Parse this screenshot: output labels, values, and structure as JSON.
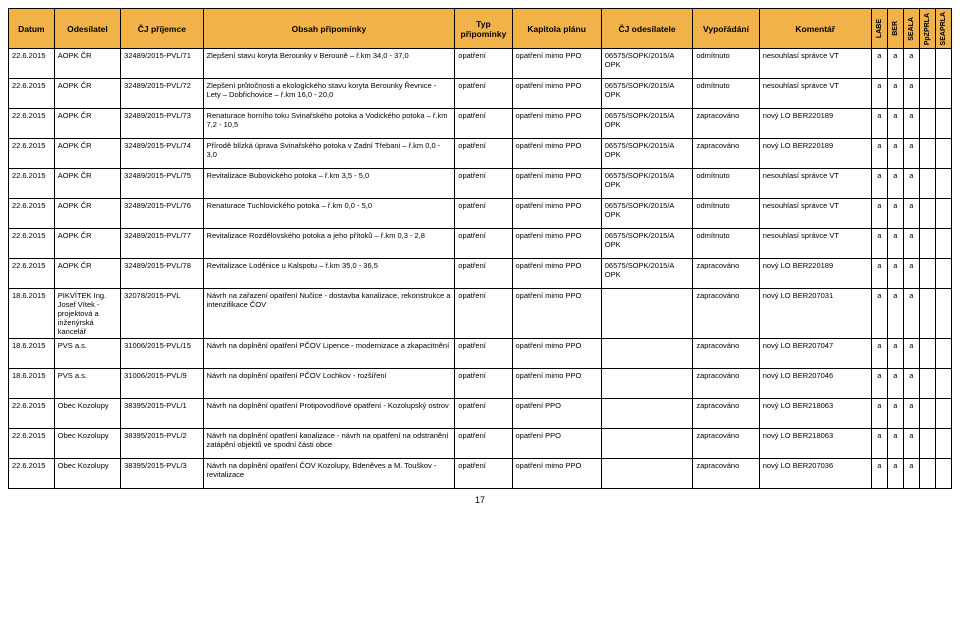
{
  "headers": {
    "datum": "Datum",
    "odesilatel": "Odesílatel",
    "cj_prijemce": "ČJ příjemce",
    "obsah": "Obsah připomínky",
    "typ": "Typ připomínky",
    "kapitola": "Kapitola plánu",
    "cj_odesilatele": "ČJ odesílatele",
    "vyporadani": "Vypořádání",
    "komentar": "Komentář",
    "v1": "LABE",
    "v2": "BER",
    "v3": "SEALA",
    "v4": "PpZPRLA",
    "v5": "SEAPRLA"
  },
  "rows": [
    {
      "datum": "22.6.2015",
      "odes": "AOPK ČR",
      "cjpr": "32489/2015-PVL/71",
      "obsah": "Zlepšení stavu koryta Berounky v Berouně – ř.km 34,0 - 37,0",
      "typ": "opatření",
      "kap": "opatření mimo PPO",
      "cjod": "06575/SOPK/2015/A OPK",
      "vyp": "odmítnuto",
      "kom": "nesouhlasí správce VT",
      "v1": "a",
      "v2": "a",
      "v3": "a",
      "v4": "",
      "v5": ""
    },
    {
      "datum": "22.6.2015",
      "odes": "AOPK ČR",
      "cjpr": "32489/2015-PVL/72",
      "obsah": "Zlepšení průtočnosti a ekologického stavu koryta Berounky Řevnice - Lety – Dobřichovice – ř.km 16,0 - 20,0",
      "typ": "opatření",
      "kap": "opatření mimo PPO",
      "cjod": "06575/SOPK/2015/A OPK",
      "vyp": "odmítnuto",
      "kom": "nesouhlasí správce VT",
      "v1": "a",
      "v2": "a",
      "v3": "a",
      "v4": "",
      "v5": ""
    },
    {
      "datum": "22.6.2015",
      "odes": "AOPK ČR",
      "cjpr": "32489/2015-PVL/73",
      "obsah": "Renaturace horního toku Svinařského potoka a Vodického potoka – ř.km 7,2 - 10,5",
      "typ": "opatření",
      "kap": "opatření mimo PPO",
      "cjod": "06575/SOPK/2015/A OPK",
      "vyp": "zapracováno",
      "kom": "nový LO BER220189",
      "v1": "a",
      "v2": "a",
      "v3": "a",
      "v4": "",
      "v5": ""
    },
    {
      "datum": "22.6.2015",
      "odes": "AOPK ČR",
      "cjpr": "32489/2015-PVL/74",
      "obsah": "Přírodě blízká úprava Svinařského potoka v Zadní Třebani – ř.km 0,0 - 3,0",
      "typ": "opatření",
      "kap": "opatření mimo PPO",
      "cjod": "06575/SOPK/2015/A OPK",
      "vyp": "zapracováno",
      "kom": "nový LO BER220189",
      "v1": "a",
      "v2": "a",
      "v3": "a",
      "v4": "",
      "v5": ""
    },
    {
      "datum": "22.6.2015",
      "odes": "AOPK ČR",
      "cjpr": "32489/2015-PVL/75",
      "obsah": "Revitalizace Bubovického potoka – ř.km 3,5 - 5,0",
      "typ": "opatření",
      "kap": "opatření mimo PPO",
      "cjod": "06575/SOPK/2015/A OPK",
      "vyp": "odmítnuto",
      "kom": "nesouhlasí správce VT",
      "v1": "a",
      "v2": "a",
      "v3": "a",
      "v4": "",
      "v5": ""
    },
    {
      "datum": "22.6.2015",
      "odes": "AOPK ČR",
      "cjpr": "32489/2015-PVL/76",
      "obsah": "Renaturace Tuchlovického potoka – ř.km 0,0 - 5,0",
      "typ": "opatření",
      "kap": "opatření mimo PPO",
      "cjod": "06575/SOPK/2015/A OPK",
      "vyp": "odmítnuto",
      "kom": "nesouhlasí správce VT",
      "v1": "a",
      "v2": "a",
      "v3": "a",
      "v4": "",
      "v5": ""
    },
    {
      "datum": "22.6.2015",
      "odes": "AOPK ČR",
      "cjpr": "32489/2015-PVL/77",
      "obsah": "Revitalizace Rozdělovského potoka a jeho přítoků – ř.km 0,3 - 2,8",
      "typ": "opatření",
      "kap": "opatření mimo PPO",
      "cjod": "06575/SOPK/2015/A OPK",
      "vyp": "odmítnuto",
      "kom": "nesouhlasí správce VT",
      "v1": "a",
      "v2": "a",
      "v3": "a",
      "v4": "",
      "v5": ""
    },
    {
      "datum": "22.6.2015",
      "odes": "AOPK ČR",
      "cjpr": "32489/2015-PVL/78",
      "obsah": "Revitalizace Loděnice u Kalspotu – ř.km 35,0 - 36,5",
      "typ": "opatření",
      "kap": "opatření mimo PPO",
      "cjod": "06575/SOPK/2015/A OPK",
      "vyp": "zapracováno",
      "kom": "nový LO BER220189",
      "v1": "a",
      "v2": "a",
      "v3": "a",
      "v4": "",
      "v5": ""
    },
    {
      "datum": "18.6.2015",
      "odes": "PIKVÍTEK Ing. Josef Vítek - projektová a inženýrská kancelář",
      "cjpr": "32078/2015-PVL",
      "obsah": "Návrh na zařazení opatření Nučice - dostavba kanalizace, rekonstrukce a intenzifikace ČOV",
      "typ": "opatření",
      "kap": "opatření mimo PPO",
      "cjod": "",
      "vyp": "zapracováno",
      "kom": "nový LO BER207031",
      "v1": "a",
      "v2": "a",
      "v3": "a",
      "v4": "",
      "v5": ""
    },
    {
      "datum": "18.6.2015",
      "odes": "PVS a.s.",
      "cjpr": "31006/2015-PVL/15",
      "obsah": "Návrh na doplnění opatření PČOV Lipence - modernizace a zkapacitnění",
      "typ": "opatření",
      "kap": "opatření mimo PPO",
      "cjod": "",
      "vyp": "zapracováno",
      "kom": "nový LO BER207047",
      "v1": "a",
      "v2": "a",
      "v3": "a",
      "v4": "",
      "v5": ""
    },
    {
      "datum": "18.6.2015",
      "odes": "PVS a.s.",
      "cjpr": "31006/2015-PVL/9",
      "obsah": "Návrh na doplnění opatření PČOV Lochkov - rozšíření",
      "typ": "opatření",
      "kap": "opatření mimo PPO",
      "cjod": "",
      "vyp": "zapracováno",
      "kom": "nový LO BER207046",
      "v1": "a",
      "v2": "a",
      "v3": "a",
      "v4": "",
      "v5": ""
    },
    {
      "datum": "22.6.2015",
      "odes": "Obec Kozolupy",
      "cjpr": "38395/2015-PVL/1",
      "obsah": "Návrh na doplnění opatření Protipovodňové opatření - Kozolupský ostrov",
      "typ": "opatření",
      "kap": "opatření PPO",
      "cjod": "",
      "vyp": "zapracováno",
      "kom": "nový LO BER218063",
      "v1": "a",
      "v2": "a",
      "v3": "a",
      "v4": "",
      "v5": ""
    },
    {
      "datum": "22.6.2015",
      "odes": "Obec Kozolupy",
      "cjpr": "38395/2015-PVL/2",
      "obsah": "Návrh na doplnění opatření kanalizace - návrh na opatření na odstranění zatápění objektů ve spodní části obce",
      "typ": "opatření",
      "kap": "opatření PPO",
      "cjod": "",
      "vyp": "zapracováno",
      "kom": "nový LO BER218063",
      "v1": "a",
      "v2": "a",
      "v3": "a",
      "v4": "",
      "v5": ""
    },
    {
      "datum": "22.6.2015",
      "odes": "Obec Kozolupy",
      "cjpr": "38395/2015-PVL/3",
      "obsah": "Návrh na doplnění opatření ČOV Kozolupy, Bdeněves a M. Touškov - revitalizace",
      "typ": "opatření",
      "kap": "opatření mimo PPO",
      "cjod": "",
      "vyp": "zapracováno",
      "kom": "nový LO BER207036",
      "v1": "a",
      "v2": "a",
      "v3": "a",
      "v4": "",
      "v5": ""
    }
  ],
  "page_number": "17",
  "colors": {
    "header_bg": "#f1b24a",
    "border": "#000000",
    "bg": "#ffffff"
  }
}
